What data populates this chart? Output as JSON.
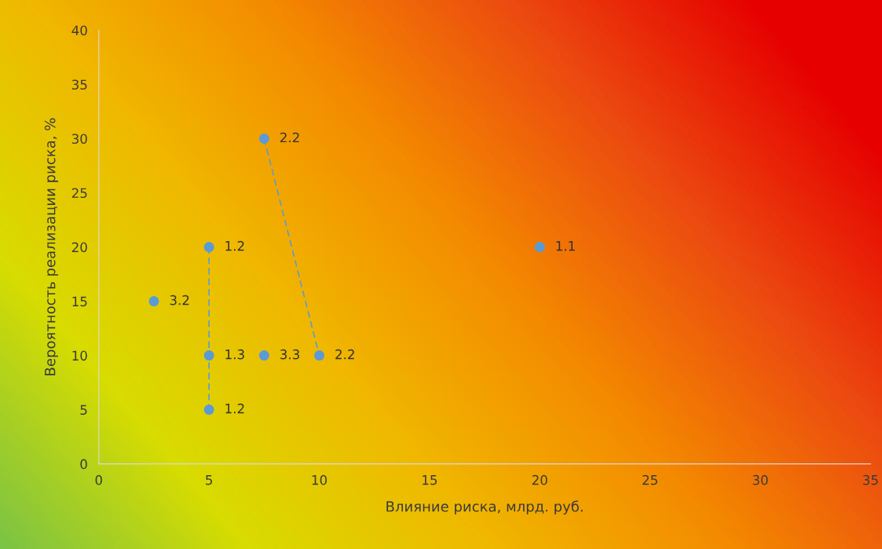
{
  "chart_data": {
    "type": "scatter",
    "xlabel": "Влияние риска, млрд. руб.",
    "ylabel": "Вероятность реализации риска, %",
    "xlim": [
      0,
      35
    ],
    "xticks": [
      0,
      5,
      10,
      15,
      20,
      25,
      30,
      35
    ],
    "ylim": [
      0,
      40
    ],
    "yticks": [
      0,
      5,
      10,
      15,
      20,
      25,
      30,
      35,
      40
    ],
    "grid": false,
    "legend": false,
    "series": [
      {
        "type": "line",
        "x": [
          5,
          5,
          5
        ],
        "values": [
          20,
          10,
          5
        ],
        "color": "#5b9bd5",
        "line_style": "dashed",
        "marker": "none"
      },
      {
        "type": "line",
        "x": [
          7.5,
          10
        ],
        "values": [
          30,
          10
        ],
        "color": "#5b9bd5",
        "line_style": "dashed",
        "marker": "none"
      },
      {
        "x": [
          20,
          5,
          5,
          5,
          7.5,
          10,
          7.5,
          2.5
        ],
        "values": [
          20,
          20,
          10,
          5,
          30,
          10,
          10,
          15
        ],
        "color": "#5b9bd5",
        "marker": "circle"
      }
    ],
    "annotations": [
      {
        "text": "1.1",
        "x": 20,
        "y": 20
      },
      {
        "text": "1.2",
        "x": 5,
        "y": 20
      },
      {
        "text": "1.3",
        "x": 5,
        "y": 10
      },
      {
        "text": "1.2",
        "x": 5,
        "y": 5
      },
      {
        "text": "2.2",
        "x": 7.5,
        "y": 30
      },
      {
        "text": "2.2",
        "x": 10,
        "y": 10
      },
      {
        "text": "3.3",
        "x": 7.5,
        "y": 10
      },
      {
        "text": "3.2",
        "x": 2.5,
        "y": 15
      }
    ]
  }
}
